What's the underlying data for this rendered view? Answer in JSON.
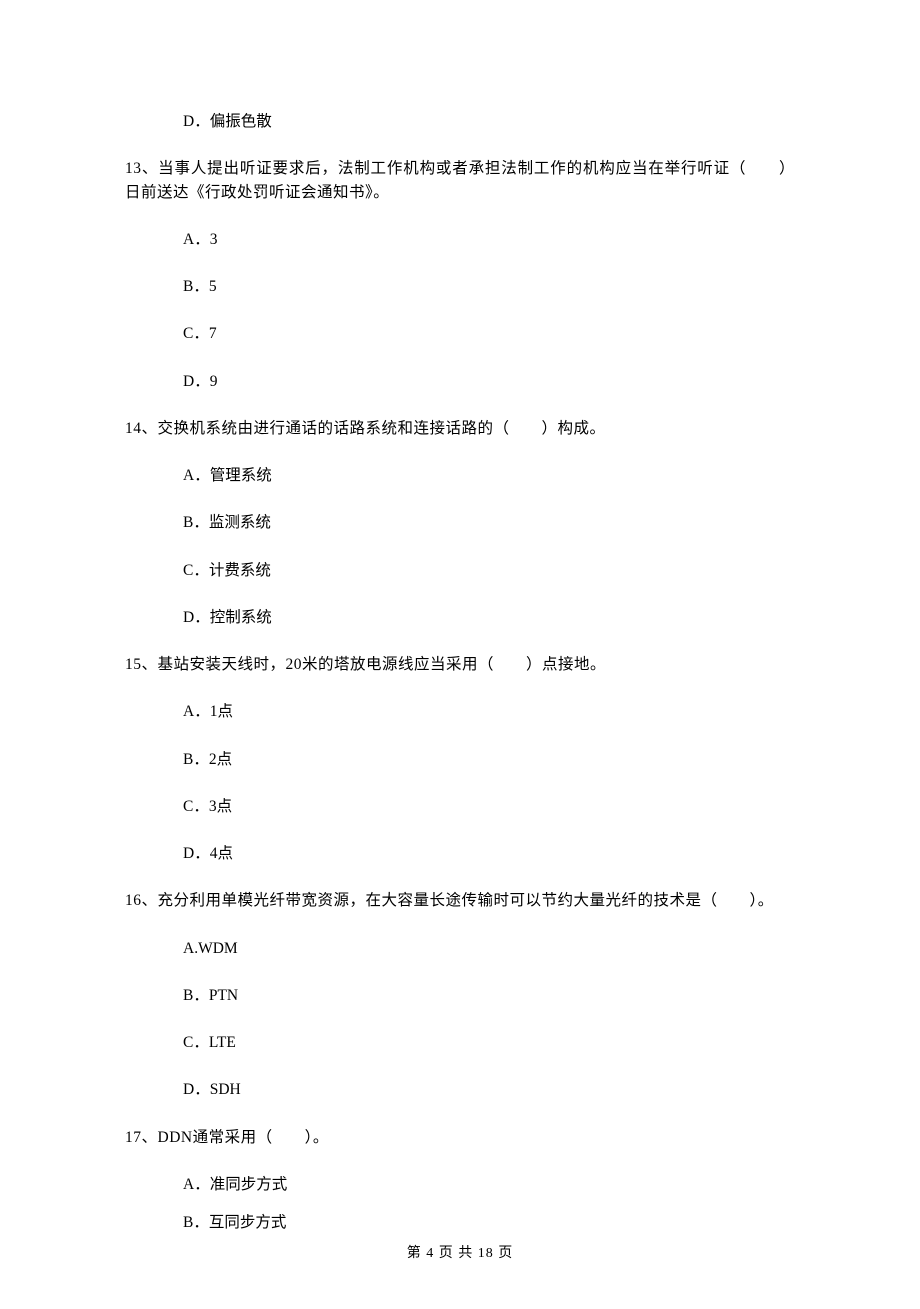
{
  "q12": {
    "optD": "D．偏振色散"
  },
  "q13": {
    "stem": "13、当事人提出听证要求后，法制工作机构或者承担法制工作的机构应当在举行听证（　　）日前送达《行政处罚听证会通知书》。",
    "optA": "A．3",
    "optB": "B．5",
    "optC": "C．7",
    "optD": "D．9"
  },
  "q14": {
    "stem": "14、交换机系统由进行通话的话路系统和连接话路的（　　）构成。",
    "optA": "A．管理系统",
    "optB": "B．监测系统",
    "optC": "C．计费系统",
    "optD": "D．控制系统"
  },
  "q15": {
    "stem": "15、基站安装天线时，20米的塔放电源线应当采用（　　）点接地。",
    "optA": "A．1点",
    "optB": "B．2点",
    "optC": "C．3点",
    "optD": "D．4点"
  },
  "q16": {
    "stem": "16、充分利用单模光纤带宽资源，在大容量长途传输时可以节约大量光纤的技术是（　　）。",
    "optA": "A.WDM",
    "optB": "B．PTN",
    "optC": "C．LTE",
    "optD": "D．SDH"
  },
  "q17": {
    "stem": "17、DDN通常采用（　　）。",
    "optA": "A．准同步方式",
    "optB": "B．互同步方式"
  },
  "footer": "第 4 页 共 18 页"
}
